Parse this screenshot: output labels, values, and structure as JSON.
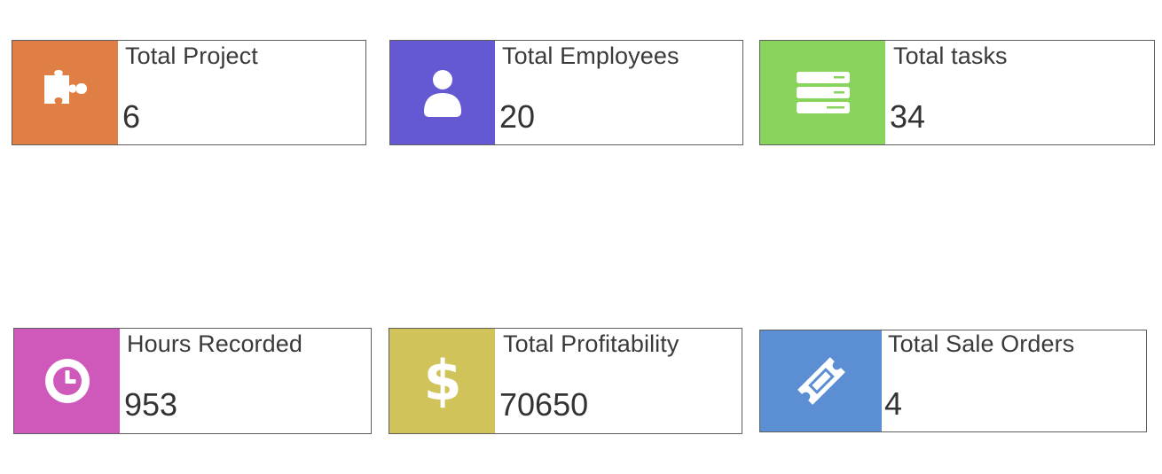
{
  "cards": [
    {
      "label": "Total Project",
      "value": "6",
      "icon": "puzzle-piece-icon",
      "color": "#e07f45"
    },
    {
      "label": "Total Employees",
      "value": "20",
      "icon": "user-icon",
      "color": "#6558d3"
    },
    {
      "label": "Total tasks",
      "value": "34",
      "icon": "server-list-icon",
      "color": "#87d35b"
    },
    {
      "label": "Hours Recorded",
      "value": "953",
      "icon": "clock-icon",
      "color": "#cf58bb"
    },
    {
      "label": "Total Profitability",
      "value": "70650",
      "icon": "dollar-icon",
      "color": "#d0c35a"
    },
    {
      "label": "Total Sale Orders",
      "value": "4",
      "icon": "ticket-icon",
      "color": "#5c8ed4"
    }
  ]
}
